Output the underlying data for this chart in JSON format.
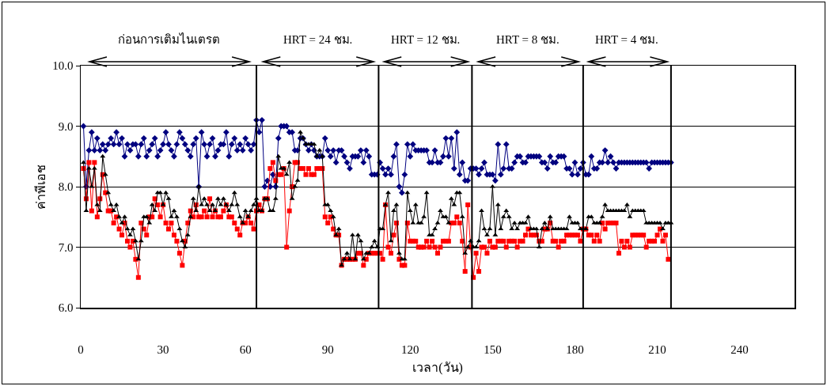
{
  "chart_data": {
    "type": "line",
    "xlabel": "เวลา(วัน)",
    "ylabel": "ค่าพีเอช",
    "annotations": [
      "ก่อนการเติมไนเตรต",
      "HRT = 24 ชม.",
      "HRT = 12 ชม.",
      "HRT = 8 ชม.",
      "HRT = 4 ชม."
    ],
    "x": [
      1,
      2,
      3,
      4,
      5,
      6,
      7,
      8,
      9,
      10,
      11,
      12,
      13,
      14,
      15,
      16,
      17,
      18,
      19,
      20,
      21,
      22,
      23,
      24,
      25,
      26,
      27,
      28,
      29,
      30,
      31,
      32,
      33,
      34,
      35,
      36,
      37,
      38,
      39,
      40,
      41,
      42,
      43,
      44,
      45,
      46,
      47,
      48,
      49,
      50,
      51,
      52,
      53,
      54,
      55,
      56,
      57,
      58,
      59,
      60,
      61,
      62,
      63,
      64,
      65,
      66,
      67,
      68,
      69,
      70,
      71,
      72,
      73,
      74,
      75,
      76,
      77,
      78,
      79,
      80,
      81,
      82,
      83,
      84,
      85,
      86,
      87,
      88,
      89,
      90,
      91,
      92,
      93,
      94,
      95,
      96,
      97,
      98,
      99,
      100,
      101,
      102,
      103,
      104,
      105,
      106,
      107,
      108,
      109,
      110,
      111,
      112,
      113,
      114,
      115,
      116,
      117,
      118,
      119,
      120,
      121,
      122,
      123,
      124,
      125,
      126,
      127,
      128,
      129,
      130,
      131,
      132,
      133,
      134,
      135,
      136,
      137,
      138,
      139,
      140,
      141,
      142,
      143,
      144,
      145,
      146,
      147,
      148,
      149,
      150,
      151,
      152,
      153,
      154,
      155,
      156,
      157,
      158,
      159,
      160,
      161,
      162,
      163,
      164,
      165,
      166,
      167,
      168,
      169,
      170,
      171,
      172,
      173,
      174,
      175,
      176,
      177,
      178,
      179,
      180,
      181,
      182,
      183,
      184,
      185,
      186,
      187,
      188,
      189,
      190,
      191,
      192,
      193,
      194,
      195,
      196,
      197,
      198,
      199,
      200,
      201,
      202,
      203,
      204,
      205,
      206,
      207,
      208,
      209,
      210,
      211,
      212,
      213,
      214,
      215
    ],
    "series": [
      {
        "color": "#000080",
        "marker": "diamond",
        "values": [
          9.0,
          8.0,
          8.6,
          8.9,
          8.6,
          8.8,
          8.6,
          8.7,
          8.6,
          8.7,
          8.8,
          8.7,
          8.9,
          8.7,
          8.8,
          8.5,
          8.7,
          8.6,
          8.7,
          8.7,
          8.5,
          8.7,
          8.8,
          8.5,
          8.6,
          8.7,
          8.8,
          8.5,
          8.6,
          8.7,
          8.9,
          8.7,
          8.6,
          8.5,
          8.7,
          8.9,
          8.8,
          8.7,
          8.6,
          8.5,
          8.7,
          8.8,
          8.0,
          8.9,
          8.7,
          8.5,
          8.7,
          8.8,
          8.5,
          8.6,
          8.7,
          8.7,
          8.9,
          8.5,
          8.7,
          8.8,
          8.6,
          8.7,
          8.6,
          8.8,
          8.7,
          8.6,
          8.7,
          9.1,
          8.9,
          9.1,
          8.0,
          8.1,
          8.0,
          8.2,
          8.0,
          8.8,
          9.0,
          9.0,
          9.0,
          8.9,
          8.9,
          8.6,
          8.6,
          8.8,
          8.8,
          8.7,
          8.6,
          8.7,
          8.6,
          8.5,
          8.5,
          8.5,
          8.8,
          8.6,
          8.5,
          8.6,
          8.4,
          8.6,
          8.6,
          8.5,
          8.4,
          8.3,
          8.5,
          8.5,
          8.5,
          8.6,
          8.4,
          8.6,
          8.5,
          8.2,
          8.2,
          8.2,
          8.4,
          8.3,
          8.2,
          8.3,
          8.2,
          8.5,
          8.7,
          8.0,
          7.9,
          8.2,
          8.7,
          8.5,
          8.7,
          8.6,
          8.6,
          8.6,
          8.6,
          8.6,
          8.4,
          8.4,
          8.6,
          8.4,
          8.4,
          8.5,
          8.8,
          8.5,
          8.8,
          8.3,
          8.9,
          8.2,
          8.4,
          8.1,
          8.1,
          8.3,
          8.3,
          8.3,
          8.2,
          8.3,
          8.4,
          8.2,
          8.2,
          8.2,
          8.1,
          8.7,
          8.2,
          8.3,
          8.7,
          8.3,
          8.3,
          8.4,
          8.5,
          8.5,
          8.4,
          8.4,
          8.5,
          8.5,
          8.5,
          8.5,
          8.5,
          8.4,
          8.4,
          8.3,
          8.5,
          8.4,
          8.4,
          8.5,
          8.5,
          8.5,
          8.3,
          8.3,
          8.2,
          8.4,
          8.2,
          8.3,
          8.4,
          8.2,
          8.2,
          8.5,
          8.3,
          8.3,
          8.4,
          8.4,
          8.6,
          8.4,
          8.5,
          8.4,
          8.3,
          8.4,
          8.4,
          8.4,
          8.4,
          8.4,
          8.4,
          8.4,
          8.4,
          8.4,
          8.4,
          8.4,
          8.3,
          8.4,
          8.4,
          8.4,
          8.4,
          8.4,
          8.4,
          8.4,
          8.4
        ]
      },
      {
        "color": "#ff0000",
        "marker": "square",
        "values": [
          8.3,
          7.8,
          8.4,
          7.6,
          8.4,
          7.5,
          7.8,
          8.2,
          7.9,
          7.6,
          7.6,
          7.4,
          7.5,
          7.3,
          7.2,
          7.4,
          7.1,
          7.0,
          7.1,
          6.8,
          6.5,
          7.4,
          7.3,
          7.2,
          7.5,
          7.5,
          7.8,
          7.7,
          7.5,
          7.7,
          7.4,
          7.3,
          7.4,
          7.2,
          7.1,
          6.9,
          6.7,
          7.1,
          7.4,
          7.6,
          7.5,
          7.7,
          7.5,
          7.5,
          7.6,
          7.5,
          7.8,
          7.5,
          7.6,
          7.5,
          7.5,
          7.6,
          7.7,
          7.5,
          7.5,
          7.4,
          7.3,
          7.2,
          7.4,
          7.4,
          7.5,
          7.4,
          7.3,
          7.6,
          7.7,
          7.6,
          7.8,
          7.8,
          8.3,
          8.4,
          8.1,
          8.2,
          8.2,
          8.3,
          7.0,
          7.6,
          8.0,
          8.4,
          8.4,
          8.3,
          8.3,
          8.2,
          8.3,
          8.2,
          8.2,
          8.3,
          8.3,
          8.3,
          7.5,
          7.4,
          7.5,
          7.3,
          7.2,
          7.2,
          6.7,
          6.8,
          6.8,
          6.8,
          6.8,
          6.8,
          6.9,
          6.9,
          6.7,
          6.8,
          6.9,
          6.9,
          6.9,
          6.9,
          6.9,
          6.8,
          7.7,
          7.0,
          6.9,
          7.2,
          7.4,
          6.8,
          6.7,
          6.7,
          7.4,
          7.1,
          7.1,
          7.1,
          7.0,
          7.0,
          7.0,
          7.1,
          7.0,
          7.1,
          7.0,
          6.9,
          7.0,
          7.1,
          7.1,
          7.1,
          7.4,
          7.4,
          7.5,
          7.4,
          7.1,
          6.6,
          7.7,
          7.0,
          6.5,
          6.9,
          6.6,
          7.0,
          7.0,
          6.9,
          7.1,
          7.0,
          7.0,
          7.1,
          7.1,
          7.1,
          7.0,
          7.1,
          7.1,
          7.1,
          7.0,
          7.1,
          7.1,
          7.2,
          7.3,
          7.2,
          7.2,
          7.2,
          7.1,
          7.1,
          7.3,
          7.3,
          7.4,
          7.1,
          7.1,
          7.0,
          7.1,
          7.1,
          7.2,
          7.2,
          7.2,
          7.2,
          7.2,
          7.1,
          7.3,
          7.3,
          7.2,
          7.2,
          7.1,
          7.2,
          7.1,
          7.4,
          7.3,
          7.4,
          7.4,
          7.4,
          7.4,
          6.9,
          7.1,
          7.0,
          7.1,
          7.0,
          7.2,
          7.2,
          7.2,
          7.2,
          7.2,
          7.0,
          7.1,
          7.1,
          7.1,
          7.2,
          7.3,
          7.1,
          7.2,
          6.8,
          null
        ]
      },
      {
        "color": "#000000",
        "marker": "triangle",
        "values": [
          8.4,
          7.6,
          8.3,
          8.0,
          8.3,
          7.7,
          7.6,
          8.5,
          8.2,
          7.9,
          7.7,
          7.6,
          7.7,
          7.5,
          7.4,
          7.5,
          7.3,
          7.2,
          7.3,
          7.1,
          6.8,
          7.1,
          7.5,
          7.5,
          7.4,
          7.7,
          7.6,
          7.9,
          7.9,
          7.7,
          7.9,
          7.8,
          7.5,
          7.6,
          7.5,
          7.3,
          7.1,
          7.0,
          7.2,
          7.5,
          7.8,
          7.6,
          8.0,
          7.7,
          7.8,
          7.7,
          7.6,
          7.7,
          7.6,
          7.8,
          7.7,
          7.8,
          7.7,
          7.6,
          7.7,
          7.9,
          7.7,
          7.5,
          7.4,
          7.6,
          7.5,
          7.6,
          7.7,
          7.8,
          7.6,
          7.6,
          7.8,
          7.8,
          7.6,
          7.6,
          7.8,
          8.5,
          8.3,
          8.3,
          8.2,
          8.4,
          7.8,
          8.0,
          8.1,
          8.9,
          8.8,
          8.7,
          8.7,
          8.7,
          8.7,
          8.5,
          8.6,
          8.5,
          7.7,
          7.7,
          7.6,
          7.5,
          7.2,
          7.3,
          6.7,
          6.8,
          6.9,
          6.8,
          7.2,
          6.8,
          7.2,
          7.1,
          6.8,
          6.9,
          6.9,
          7.0,
          7.1,
          7.0,
          7.3,
          7.3,
          7.7,
          7.9,
          7.1,
          7.6,
          7.7,
          6.9,
          6.8,
          6.8,
          7.9,
          7.6,
          7.4,
          7.7,
          7.4,
          7.4,
          7.5,
          7.9,
          7.2,
          7.2,
          7.3,
          7.4,
          7.6,
          7.5,
          7.5,
          7.4,
          7.8,
          7.7,
          7.9,
          7.9,
          7.5,
          6.9,
          7.0,
          7.1,
          7.0,
          7.0,
          7.1,
          7.6,
          7.3,
          7.2,
          7.3,
          8.0,
          7.2,
          7.7,
          7.3,
          7.5,
          7.6,
          7.5,
          7.3,
          7.4,
          7.3,
          7.4,
          7.4,
          7.4,
          7.5,
          7.3,
          7.3,
          7.3,
          7.0,
          7.3,
          7.4,
          7.3,
          7.5,
          7.3,
          7.3,
          7.3,
          7.3,
          7.3,
          7.3,
          7.5,
          7.4,
          7.4,
          7.4,
          7.3,
          7.3,
          7.3,
          7.5,
          7.5,
          7.4,
          7.4,
          7.4,
          7.5,
          7.7,
          7.6,
          7.6,
          7.6,
          7.6,
          7.6,
          7.6,
          7.6,
          7.7,
          7.5,
          7.6,
          7.6,
          7.6,
          7.6,
          7.6,
          7.4,
          7.4,
          7.4,
          7.4,
          7.4,
          7.4,
          7.3,
          7.4,
          7.4,
          7.4
        ]
      }
    ],
    "xlim": [
      0,
      260
    ],
    "xticks": [
      0,
      30,
      60,
      90,
      120,
      150,
      180,
      210,
      240
    ],
    "ylim": [
      6,
      10
    ],
    "yticks": [
      {
        "value": 6,
        "label": "6.0"
      },
      {
        "value": 7,
        "label": "7.0"
      },
      {
        "value": 8,
        "label": "8.0"
      },
      {
        "value": 9,
        "label": "9.0"
      },
      {
        "value": 10,
        "label": "10.0"
      }
    ],
    "ref_lines": [
      {
        "axis": "x",
        "value": 64,
        "color": "#000000"
      },
      {
        "axis": "x",
        "value": 108.5,
        "color": "#000000"
      },
      {
        "axis": "x",
        "value": 142.5,
        "color": "#000000"
      },
      {
        "axis": "x",
        "value": 183,
        "color": "#000000"
      },
      {
        "axis": "x",
        "value": 215,
        "color": "#000000"
      }
    ],
    "grid": "y",
    "line_style": "solid"
  }
}
